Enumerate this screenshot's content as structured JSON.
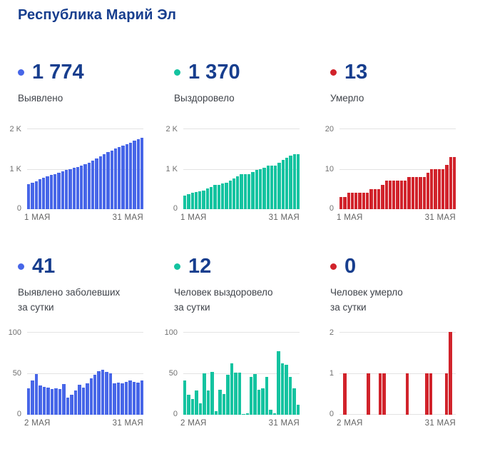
{
  "page": {
    "title": "Республика Марий Эл"
  },
  "colors": {
    "blue": "#4766e8",
    "teal": "#14c3a0",
    "red": "#d1232b",
    "number_text": "#173e8e",
    "label_text": "#3f434a",
    "axis_text": "#707070",
    "gridline": "#e3e3e3"
  },
  "stats": [
    {
      "value": "1 774",
      "label_lines": [
        "Выявлено"
      ],
      "color_key": "blue"
    },
    {
      "value": "1 370",
      "label_lines": [
        "Выздоровело"
      ],
      "color_key": "teal"
    },
    {
      "value": "13",
      "label_lines": [
        "Умерло"
      ],
      "color_key": "red"
    },
    {
      "value": "41",
      "label_lines": [
        "Выявлено заболевших",
        "за сутки"
      ],
      "color_key": "blue"
    },
    {
      "value": "12",
      "label_lines": [
        "Человек выздоровело",
        "за сутки"
      ],
      "color_key": "teal"
    },
    {
      "value": "0",
      "label_lines": [
        "Человек умерло",
        "за сутки"
      ],
      "color_key": "red"
    }
  ],
  "chart_data": [
    {
      "id": "detected-cumulative",
      "type": "bar",
      "title": "Выявлено (всего)",
      "color_key": "blue",
      "x_first_day": 1,
      "categories": [
        1,
        2,
        3,
        4,
        5,
        6,
        7,
        8,
        9,
        10,
        11,
        12,
        13,
        14,
        15,
        16,
        17,
        18,
        19,
        20,
        21,
        22,
        23,
        24,
        25,
        26,
        27,
        28,
        29,
        30,
        31
      ],
      "values": [
        621,
        653,
        694,
        743,
        778,
        812,
        845,
        876,
        908,
        939,
        976,
        997,
        1021,
        1050,
        1086,
        1119,
        1157,
        1201,
        1249,
        1302,
        1356,
        1408,
        1458,
        1496,
        1535,
        1573,
        1613,
        1654,
        1694,
        1733,
        1774
      ],
      "ylim": [
        0,
        2000
      ],
      "yticks": [
        "2 K",
        "1 K",
        "0"
      ],
      "xlabels": [
        "1 МАЯ",
        "31 МАЯ"
      ],
      "grid": true,
      "legend": "none"
    },
    {
      "id": "recovered-cumulative",
      "type": "bar",
      "title": "Выздоровело (всего)",
      "color_key": "teal",
      "x_first_day": 1,
      "categories": [
        1,
        2,
        3,
        4,
        5,
        6,
        7,
        8,
        9,
        10,
        11,
        12,
        13,
        14,
        15,
        16,
        17,
        18,
        19,
        20,
        21,
        22,
        23,
        24,
        25,
        26,
        27,
        28,
        29,
        30,
        31
      ],
      "values": [
        338,
        379,
        403,
        422,
        451,
        465,
        515,
        544,
        596,
        600,
        630,
        655,
        703,
        765,
        816,
        867,
        868,
        870,
        916,
        965,
        995,
        1027,
        1073,
        1079,
        1081,
        1158,
        1220,
        1280,
        1326,
        1358,
        1370
      ],
      "ylim": [
        0,
        2000
      ],
      "yticks": [
        "2 K",
        "1 K",
        "0"
      ],
      "xlabels": [
        "1 МАЯ",
        "31 МАЯ"
      ],
      "grid": true,
      "legend": "none"
    },
    {
      "id": "died-cumulative",
      "type": "bar",
      "title": "Умерло (всего)",
      "color_key": "red",
      "x_first_day": 1,
      "categories": [
        1,
        2,
        3,
        4,
        5,
        6,
        7,
        8,
        9,
        10,
        11,
        12,
        13,
        14,
        15,
        16,
        17,
        18,
        19,
        20,
        21,
        22,
        23,
        24,
        25,
        26,
        27,
        28,
        29,
        30,
        31
      ],
      "values": [
        3,
        3,
        4,
        4,
        4,
        4,
        4,
        4,
        5,
        5,
        5,
        6,
        7,
        7,
        7,
        7,
        7,
        7,
        8,
        8,
        8,
        8,
        8,
        9,
        10,
        10,
        10,
        10,
        11,
        13,
        13
      ],
      "ylim": [
        0,
        20
      ],
      "yticks": [
        "20",
        "10",
        "0"
      ],
      "xlabels": [
        "1 МАЯ",
        "31 МАЯ"
      ],
      "grid": true,
      "legend": "none"
    },
    {
      "id": "detected-daily",
      "type": "bar",
      "title": "Выявлено заболевших за сутки",
      "color_key": "blue",
      "x_first_day": 2,
      "categories": [
        2,
        3,
        4,
        5,
        6,
        7,
        8,
        9,
        10,
        11,
        12,
        13,
        14,
        15,
        16,
        17,
        18,
        19,
        20,
        21,
        22,
        23,
        24,
        25,
        26,
        27,
        28,
        29,
        30,
        31
      ],
      "values": [
        32,
        41,
        49,
        35,
        34,
        33,
        31,
        32,
        31,
        37,
        21,
        24,
        29,
        36,
        33,
        38,
        44,
        48,
        53,
        54,
        52,
        50,
        38,
        39,
        38,
        40,
        41,
        40,
        39,
        41
      ],
      "ylim": [
        0,
        100
      ],
      "yticks": [
        "100",
        "50",
        "0"
      ],
      "xlabels": [
        "2 МАЯ",
        "31 МАЯ"
      ],
      "grid": true,
      "legend": "none"
    },
    {
      "id": "recovered-daily",
      "type": "bar",
      "title": "Человек выздоровело за сутки",
      "color_key": "teal",
      "x_first_day": 2,
      "categories": [
        2,
        3,
        4,
        5,
        6,
        7,
        8,
        9,
        10,
        11,
        12,
        13,
        14,
        15,
        16,
        17,
        18,
        19,
        20,
        21,
        22,
        23,
        24,
        25,
        26,
        27,
        28,
        29,
        30,
        31
      ],
      "values": [
        41,
        24,
        19,
        29,
        14,
        50,
        29,
        52,
        4,
        30,
        25,
        48,
        62,
        51,
        51,
        1,
        2,
        46,
        49,
        30,
        32,
        46,
        6,
        2,
        77,
        62,
        60,
        46,
        32,
        12
      ],
      "ylim": [
        0,
        100
      ],
      "yticks": [
        "100",
        "50",
        "0"
      ],
      "xlabels": [
        "2 МАЯ",
        "31 МАЯ"
      ],
      "grid": true,
      "legend": "none"
    },
    {
      "id": "died-daily",
      "type": "bar",
      "title": "Человек умерло за сутки",
      "color_key": "red",
      "x_first_day": 2,
      "categories": [
        2,
        3,
        4,
        5,
        6,
        7,
        8,
        9,
        10,
        11,
        12,
        13,
        14,
        15,
        16,
        17,
        18,
        19,
        20,
        21,
        22,
        23,
        24,
        25,
        26,
        27,
        28,
        29,
        30,
        31
      ],
      "values": [
        0,
        1,
        0,
        0,
        0,
        0,
        0,
        1,
        0,
        0,
        1,
        1,
        0,
        0,
        0,
        0,
        0,
        1,
        0,
        0,
        0,
        0,
        1,
        1,
        0,
        0,
        0,
        1,
        2,
        0
      ],
      "ylim": [
        0,
        2
      ],
      "yticks": [
        "2",
        "1",
        "0"
      ],
      "xlabels": [
        "2 МАЯ",
        "31 МАЯ"
      ],
      "grid": true,
      "legend": "none"
    }
  ]
}
